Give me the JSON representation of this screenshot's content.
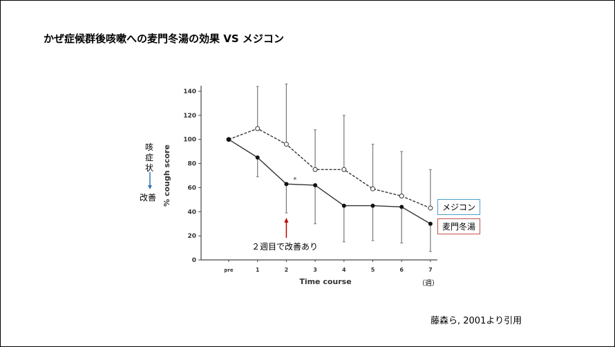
{
  "title": "かぜ症候群後咳嗽への麦門冬湯の効果 VS メジコン",
  "side_note": {
    "top_lines": [
      "咳",
      "症",
      "状"
    ],
    "bottom": "改善"
  },
  "annotation": "２週目で改善あり",
  "week_unit": "（週）",
  "citation": "藤森ら, 2001より引用",
  "colors": {
    "medicon_box": "#4a9fc8",
    "bakumondo_box": "#c0504d",
    "arrow_red": "#c00000",
    "arrow_blue": "#2e75b6"
  },
  "chart_data": {
    "type": "line",
    "xlabel": "Time course",
    "ylabel": "% cough score",
    "categories": [
      "pre",
      "1",
      "2",
      "3",
      "4",
      "5",
      "6",
      "7"
    ],
    "ylim": [
      0,
      140
    ],
    "yticks": [
      0,
      20,
      40,
      60,
      80,
      100,
      120,
      140
    ],
    "series": [
      {
        "name": "メジコン",
        "style": "dashed-open",
        "values": [
          100,
          109,
          96,
          75,
          75,
          59,
          53,
          43
        ],
        "error_upper": [
          null,
          144,
          146,
          108,
          120,
          96,
          90,
          75
        ]
      },
      {
        "name": "麦門冬湯",
        "style": "solid-filled",
        "values": [
          100,
          85,
          63,
          62,
          45,
          45,
          44,
          30
        ],
        "error_lower": [
          null,
          69,
          39,
          30,
          15,
          16,
          14,
          7
        ]
      }
    ],
    "significance_marker": {
      "category": "2",
      "text": "*"
    }
  }
}
